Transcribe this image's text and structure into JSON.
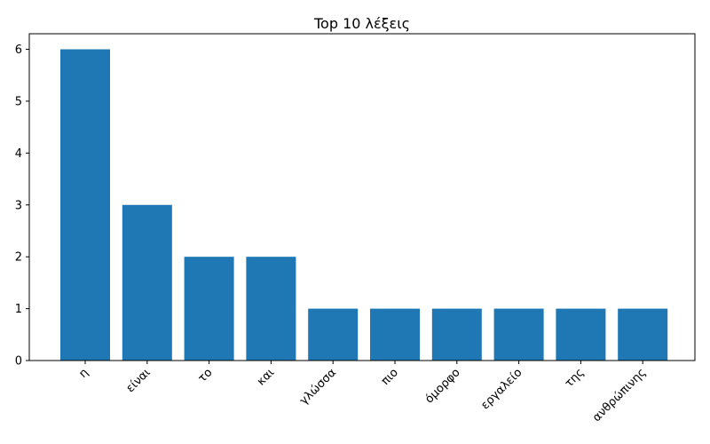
{
  "chart_data": {
    "type": "bar",
    "title": "Top 10 λέξεις",
    "xlabel": "",
    "ylabel": "",
    "categories": [
      "η",
      "είναι",
      "το",
      "και",
      "γλώσσα",
      "πιο",
      "όμορφο",
      "εργαλείο",
      "της",
      "ανθρώπινης"
    ],
    "values": [
      6,
      3,
      2,
      2,
      1,
      1,
      1,
      1,
      1,
      1
    ],
    "ylim": [
      0,
      6.3
    ],
    "yticks": [
      0,
      1,
      2,
      3,
      4,
      5,
      6
    ],
    "grid": false,
    "bar_color": "#1f77b4",
    "xtick_rotation_deg": 45
  }
}
